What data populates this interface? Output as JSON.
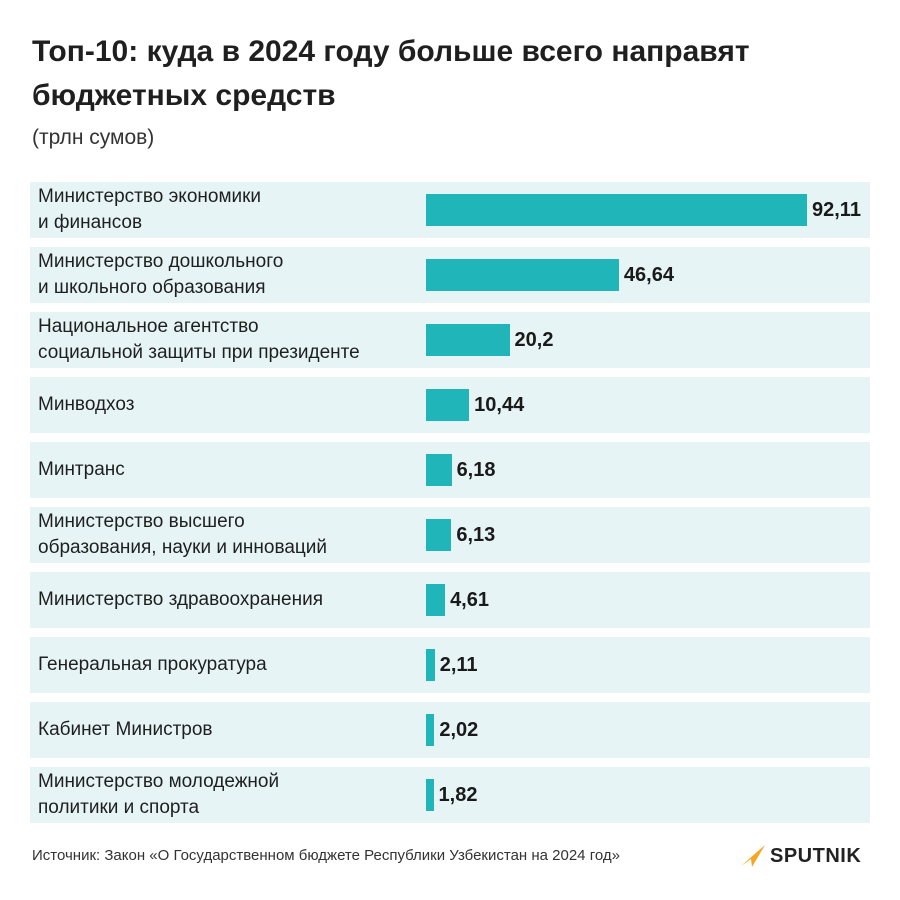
{
  "header": {
    "title": "Топ-10: куда в 2024 году больше всего направят бюджетных средств",
    "subtitle": "(трлн сумов)"
  },
  "chart_data": {
    "type": "bar",
    "orientation": "horizontal",
    "categories": [
      "Министерство экономики\nи финансов",
      "Министерство дошкольного\nи школьного образования",
      "Национальное агентство\nсоциальной защиты при президенте",
      "Минводхоз",
      "Минтранс",
      "Министерство высшего\nобразования, науки и инноваций",
      "Министерство здравоохранения",
      "Генеральная прокуратура",
      "Кабинет Министров",
      "Министерство молодежной\nполитики и спорта"
    ],
    "values": [
      92.11,
      46.64,
      20.2,
      10.44,
      6.18,
      6.13,
      4.61,
      2.11,
      2.02,
      1.82
    ],
    "value_labels": [
      "92,11",
      "46,64",
      "20,2",
      "10,44",
      "6,18",
      "6,13",
      "4,61",
      "2,11",
      "2,02",
      "1,82"
    ],
    "bar_color": "#1fb5b9",
    "row_color": "#e6f4f5",
    "grid": false,
    "legend": "none"
  },
  "footer": {
    "source": "Источник: Закон «О Государственном бюджете Республики Узбекистан на 2024 год»",
    "logo_text": "SPUTNIK",
    "logo_color": "#f5a623"
  }
}
